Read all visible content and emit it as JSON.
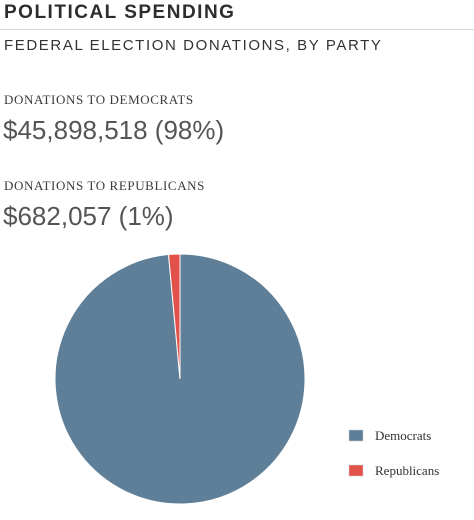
{
  "header": {
    "title": "POLITICAL SPENDING",
    "subtitle": "FEDERAL ELECTION DONATIONS, BY PARTY"
  },
  "stats": {
    "democrats": {
      "label": "DONATIONS TO DEMOCRATS",
      "value": "$45,898,518 (98%)"
    },
    "republicans": {
      "label": "DONATIONS TO REPUBLICANS",
      "value": "$682,057 (1%)"
    }
  },
  "chart_data": {
    "type": "pie",
    "title": "",
    "slices": [
      {
        "name": "Democrats",
        "value": 45898518,
        "color": "#5e7f97"
      },
      {
        "name": "Republicans",
        "value": 682057,
        "color": "#e0524a"
      }
    ],
    "legend": "right-bottom"
  }
}
